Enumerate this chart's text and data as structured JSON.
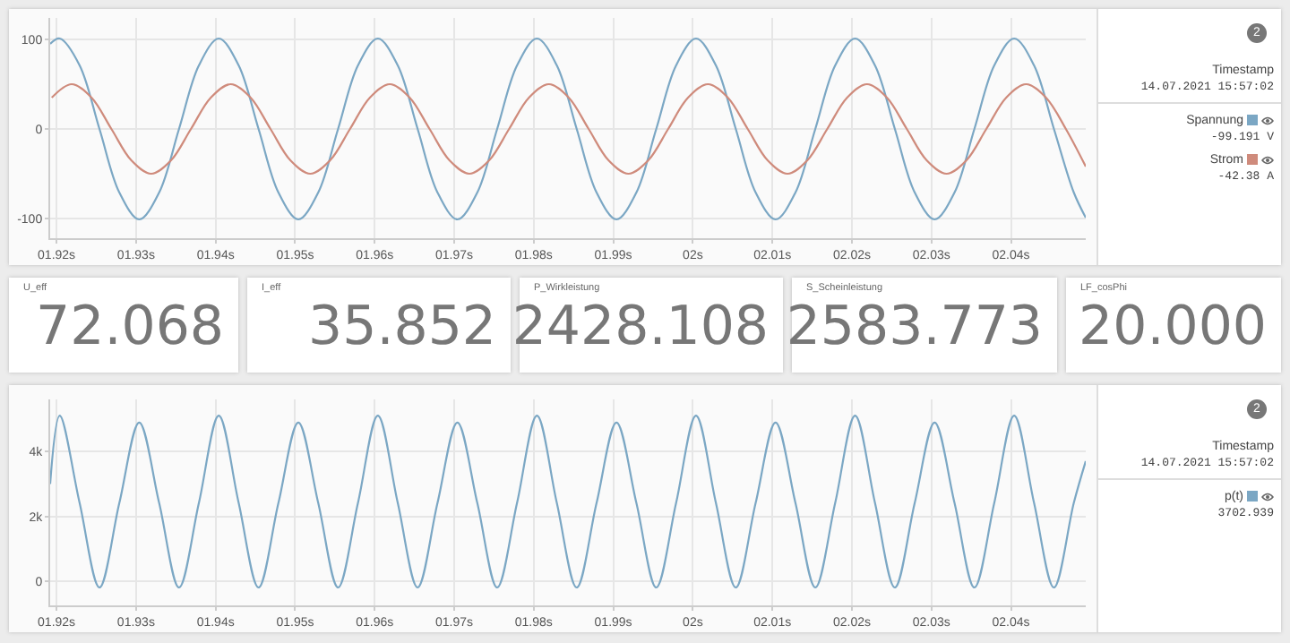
{
  "chart_data": [
    {
      "type": "line",
      "x": [
        1.9192,
        1.9204,
        1.9229,
        1.9254,
        1.9279,
        1.9304,
        1.9329,
        1.9354,
        1.9379,
        1.9404,
        1.9429,
        1.9454,
        1.9479,
        1.9504,
        1.9529,
        1.9554,
        1.9579,
        1.9604,
        1.9629,
        1.9654,
        1.9679,
        1.9704,
        1.9729,
        1.9754,
        1.9779,
        1.9804,
        1.9829,
        1.9854,
        1.9879,
        1.9904,
        1.9929,
        1.9954,
        1.9979,
        2.0004,
        2.0029,
        2.0054,
        2.0079,
        2.0104,
        2.0129,
        2.0154,
        2.0179,
        2.0204,
        2.0229,
        2.0254,
        2.0279,
        2.0304,
        2.0329,
        2.0354,
        2.0379,
        2.0404,
        2.0429,
        2.0454,
        2.0479,
        2.0494
      ],
      "series": [
        {
          "name": "Spannung",
          "color": "#7ba7c4",
          "values": [
            95,
            101,
            71,
            0,
            -71,
            -101,
            -71,
            0,
            71,
            101,
            71,
            0,
            -71,
            -101,
            -71,
            0,
            71,
            101,
            71,
            0,
            -71,
            -101,
            -71,
            0,
            71,
            101,
            71,
            0,
            -71,
            -101,
            -71,
            0,
            71,
            101,
            71,
            0,
            -71,
            -101,
            -71,
            0,
            71,
            101,
            71,
            0,
            -71,
            -101,
            -71,
            0,
            71,
            101,
            71,
            0,
            -71,
            -99
          ]
        },
        {
          "name": "Strom",
          "color": "#cf8b7c",
          "x": [
            1.9194,
            1.9219,
            1.9244,
            1.9269,
            1.9294,
            1.9319,
            1.9344,
            1.9369,
            1.9394,
            1.9419,
            1.9444,
            1.9469,
            1.9494,
            1.9519,
            1.9544,
            1.9569,
            1.9594,
            1.9619,
            1.9644,
            1.9669,
            1.9694,
            1.9719,
            1.9744,
            1.9769,
            1.9794,
            1.9819,
            1.9844,
            1.9869,
            1.9894,
            1.9919,
            1.9944,
            1.9969,
            1.9994,
            2.0019,
            2.0044,
            2.0069,
            2.0094,
            2.0119,
            2.0144,
            2.0169,
            2.0194,
            2.0219,
            2.0244,
            2.0269,
            2.0294,
            2.0319,
            2.0344,
            2.0369,
            2.0394,
            2.0419,
            2.0444,
            2.0469,
            2.0494
          ],
          "values": [
            35,
            50,
            35,
            0,
            -35,
            -50,
            -35,
            0,
            35,
            50,
            35,
            0,
            -35,
            -50,
            -35,
            0,
            35,
            50,
            35,
            0,
            -35,
            -50,
            -35,
            0,
            35,
            50,
            35,
            0,
            -35,
            -50,
            -35,
            0,
            35,
            50,
            35,
            0,
            -35,
            -50,
            -35,
            0,
            35,
            50,
            35,
            0,
            -35,
            -50,
            -35,
            0,
            35,
            50,
            35,
            0,
            -42
          ]
        }
      ],
      "xlim": [
        1.9192,
        2.0494
      ],
      "xticks": [
        {
          "value": 1.92,
          "label": "01.92s"
        },
        {
          "value": 1.93,
          "label": "01.93s"
        },
        {
          "value": 1.94,
          "label": "01.94s"
        },
        {
          "value": 1.95,
          "label": "01.95s"
        },
        {
          "value": 1.96,
          "label": "01.96s"
        },
        {
          "value": 1.97,
          "label": "01.97s"
        },
        {
          "value": 1.98,
          "label": "01.98s"
        },
        {
          "value": 1.99,
          "label": "01.99s"
        },
        {
          "value": 2,
          "label": "02s"
        },
        {
          "value": 2.01,
          "label": "02.01s"
        },
        {
          "value": 2.02,
          "label": "02.02s"
        },
        {
          "value": 2.03,
          "label": "02.03s"
        },
        {
          "value": 2.04,
          "label": "02.04s"
        }
      ],
      "ylim": [
        -122,
        124
      ],
      "yticks": [
        -100,
        0,
        100
      ],
      "grid": true,
      "legend": "right",
      "annotations": [
        "2",
        "Timestamp",
        "14.07.2021 15:57:02",
        "-99.191 V",
        "-42.38 A"
      ]
    },
    {
      "type": "other",
      "annotations": [
        "U_eff",
        "72.068",
        "I_eff",
        "35.852",
        "P_Wirkleistung",
        "2428.108",
        "S_Scheinleistung",
        "2583.773",
        "LF_cosPhi",
        "20.000"
      ]
    },
    {
      "type": "line",
      "x": [
        1.9192,
        1.9204,
        1.9229,
        1.9254,
        1.9279,
        1.9304,
        1.9329,
        1.9354,
        1.9379,
        1.9404,
        1.9429,
        1.9454,
        1.9479,
        1.9504,
        1.9529,
        1.9554,
        1.9579,
        1.9604,
        1.9629,
        1.9654,
        1.9679,
        1.9704,
        1.9729,
        1.9754,
        1.9779,
        1.9804,
        1.9829,
        1.9854,
        1.9879,
        1.9904,
        1.9929,
        1.9954,
        1.9979,
        2.0004,
        2.0029,
        2.0054,
        2.0079,
        2.0104,
        2.0129,
        2.0154,
        2.0179,
        2.0204,
        2.0229,
        2.0254,
        2.0279,
        2.0304,
        2.0329,
        2.0354,
        2.0379,
        2.0404,
        2.0429,
        2.0454,
        2.0479,
        2.0494
      ],
      "series": [
        {
          "name": "p(t)",
          "color": "#7ba7c4",
          "values": [
            3000,
            5100,
            2420,
            -180,
            2420,
            4890,
            2420,
            -180,
            2420,
            5100,
            2420,
            -180,
            2420,
            4890,
            2420,
            -180,
            2420,
            5100,
            2420,
            -180,
            2420,
            4890,
            2420,
            -180,
            2420,
            5100,
            2420,
            -180,
            2420,
            4890,
            2420,
            -180,
            2420,
            5100,
            2420,
            -180,
            2420,
            4890,
            2420,
            -180,
            2420,
            5100,
            2420,
            -180,
            2420,
            4890,
            2420,
            -180,
            2420,
            5100,
            2420,
            -180,
            2420,
            3703
          ]
        }
      ],
      "xlim": [
        1.9192,
        2.0494
      ],
      "xticks": [
        {
          "value": 1.92,
          "label": "01.92s"
        },
        {
          "value": 1.93,
          "label": "01.93s"
        },
        {
          "value": 1.94,
          "label": "01.94s"
        },
        {
          "value": 1.95,
          "label": "01.95s"
        },
        {
          "value": 1.96,
          "label": "01.96s"
        },
        {
          "value": 1.97,
          "label": "01.97s"
        },
        {
          "value": 1.98,
          "label": "01.98s"
        },
        {
          "value": 1.99,
          "label": "01.99s"
        },
        {
          "value": 2,
          "label": "02s"
        },
        {
          "value": 2.01,
          "label": "02.01s"
        },
        {
          "value": 2.02,
          "label": "02.02s"
        },
        {
          "value": 2.03,
          "label": "02.03s"
        },
        {
          "value": 2.04,
          "label": "02.04s"
        }
      ],
      "ylim": [
        -730,
        5600
      ],
      "yticks": [
        0,
        {
          "value": 2000,
          "label": "2k"
        },
        {
          "value": 4000,
          "label": "4k"
        }
      ],
      "grid": true,
      "legend": "right",
      "annotations": [
        "2",
        "Timestamp",
        "14.07.2021 15:57:02",
        "3702.939"
      ]
    }
  ]
}
